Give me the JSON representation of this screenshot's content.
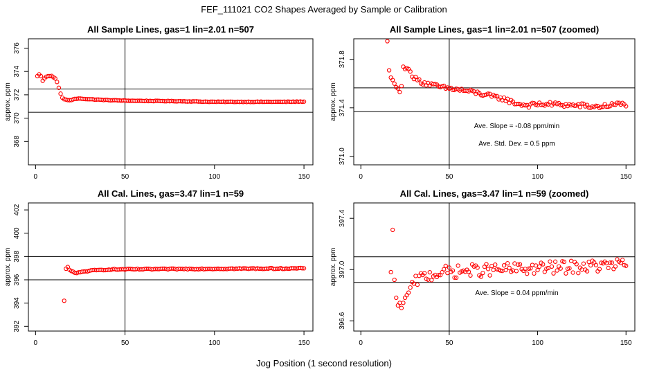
{
  "suptitle": "FEF_111021  CO2 Shapes Averaged by Sample or Calibration",
  "xlabel": "Jog Position (1 second resolution)",
  "colors": {
    "points": "#ff0000",
    "axes": "#000000",
    "background": "#ffffff"
  },
  "chart_data": [
    {
      "type": "scatter",
      "panel": "top-left",
      "title": "All Sample Lines, gas=1 lin=2.01 n=507",
      "ylabel": "approx. ppm",
      "xlim": [
        -4,
        155
      ],
      "ylim": [
        366.0,
        376.8
      ],
      "xticks": [
        "0",
        "50",
        "100",
        "150"
      ],
      "yticks": [
        "368",
        "370",
        "372",
        "374",
        "376"
      ],
      "vline": 50,
      "hlines": [
        372.5,
        370.5
      ],
      "annotations": [],
      "series": [
        {
          "name": "CO2 shape",
          "anchors": [
            [
              1,
              373.6
            ],
            [
              2,
              373.75
            ],
            [
              3,
              373.6
            ],
            [
              4,
              373.2
            ],
            [
              5,
              373.4
            ],
            [
              6,
              373.55
            ],
            [
              7,
              373.6
            ],
            [
              8,
              373.6
            ],
            [
              9,
              373.62
            ],
            [
              10,
              373.5
            ],
            [
              11,
              373.4
            ],
            [
              12,
              373.1
            ],
            [
              13,
              372.6
            ],
            [
              14,
              372.1
            ],
            [
              15,
              371.75
            ],
            [
              16,
              371.62
            ],
            [
              18,
              371.55
            ],
            [
              20,
              371.55
            ],
            [
              22,
              371.65
            ],
            [
              25,
              371.68
            ],
            [
              30,
              371.62
            ],
            [
              40,
              371.55
            ],
            [
              50,
              371.5
            ],
            [
              60,
              371.48
            ],
            [
              80,
              371.45
            ],
            [
              100,
              371.4
            ],
            [
              120,
              371.4
            ],
            [
              140,
              371.4
            ],
            [
              150,
              371.42
            ]
          ],
          "noise": 0.02
        }
      ]
    },
    {
      "type": "scatter",
      "panel": "top-right",
      "title": "All Sample Lines, gas=1 lin=2.01 n=507 (zoomed)",
      "ylabel": "approx. ppm",
      "xlim": [
        -4,
        155
      ],
      "ylim": [
        370.93,
        371.97
      ],
      "xticks": [
        "0",
        "50",
        "100",
        "150"
      ],
      "yticks": [
        "371.0",
        "371.4",
        "371.8"
      ],
      "vline": 50,
      "hlines": [
        371.565,
        371.37
      ],
      "annotations": [
        "Ave. Slope =  -0.08  ppm/min",
        "Ave. Std. Dev. =  0.5  ppm"
      ],
      "series": [
        {
          "name": "CO2 shape",
          "anchors": [
            [
              15,
              371.95
            ],
            [
              16,
              371.71
            ],
            [
              17,
              371.65
            ],
            [
              18,
              371.63
            ],
            [
              19,
              371.6
            ],
            [
              20,
              371.57
            ],
            [
              21,
              371.56
            ],
            [
              22,
              371.53
            ],
            [
              23,
              371.58
            ],
            [
              24,
              371.74
            ],
            [
              25,
              371.72
            ],
            [
              27,
              371.72
            ],
            [
              28,
              371.7
            ],
            [
              30,
              371.65
            ],
            [
              32,
              371.63
            ],
            [
              35,
              371.61
            ],
            [
              40,
              371.59
            ],
            [
              45,
              371.57
            ],
            [
              50,
              371.56
            ],
            [
              55,
              371.55
            ],
            [
              60,
              371.54
            ],
            [
              70,
              371.51
            ],
            [
              75,
              371.49
            ],
            [
              80,
              371.48
            ],
            [
              85,
              371.45
            ],
            [
              90,
              371.43
            ],
            [
              95,
              371.42
            ],
            [
              100,
              371.43
            ],
            [
              110,
              371.43
            ],
            [
              120,
              371.42
            ],
            [
              125,
              371.42
            ],
            [
              130,
              371.41
            ],
            [
              135,
              371.41
            ],
            [
              140,
              371.42
            ],
            [
              145,
              371.43
            ],
            [
              150,
              371.43
            ]
          ],
          "noise": 0.018
        }
      ]
    },
    {
      "type": "scatter",
      "panel": "bottom-left",
      "title": "All Cal. Lines, gas=3.47 lin=1 n=59",
      "ylabel": "approx. ppm",
      "xlim": [
        -4,
        155
      ],
      "ylim": [
        391.6,
        402.6
      ],
      "xticks": [
        "0",
        "50",
        "100",
        "150"
      ],
      "yticks": [
        "392",
        "394",
        "396",
        "398",
        "400",
        "402"
      ],
      "vline": 50,
      "hlines": [
        398.0,
        396.0
      ],
      "annotations": [],
      "series": [
        {
          "name": "CO2 shape",
          "anchors": [
            [
              16,
              394.2
            ],
            [
              17,
              396.95
            ],
            [
              18,
              397.1
            ],
            [
              19,
              396.85
            ],
            [
              20,
              396.75
            ],
            [
              21,
              396.7
            ],
            [
              22,
              396.6
            ],
            [
              23,
              396.58
            ],
            [
              25,
              396.65
            ],
            [
              30,
              396.78
            ],
            [
              40,
              396.88
            ],
            [
              50,
              396.9
            ],
            [
              100,
              396.95
            ],
            [
              150,
              396.98
            ]
          ],
          "noise": 0.04
        }
      ]
    },
    {
      "type": "scatter",
      "panel": "bottom-right",
      "title": "All Cal. Lines, gas=3.47 lin=1 n=59 (zoomed)",
      "ylabel": "approx. ppm",
      "xlim": [
        -4,
        155
      ],
      "ylim": [
        396.52,
        397.52
      ],
      "xticks": [
        "0",
        "50",
        "100",
        "150"
      ],
      "yticks": [
        "396.6",
        "397.0",
        "397.4"
      ],
      "vline": 50,
      "hlines": [
        397.1,
        396.9
      ],
      "annotations": [
        "Ave. Slope =  0.04  ppm/min"
      ],
      "series": [
        {
          "name": "CO2 shape",
          "anchors": [
            [
              17,
              396.98
            ],
            [
              18,
              397.31
            ],
            [
              19,
              396.92
            ],
            [
              20,
              396.78
            ],
            [
              21,
              396.72
            ],
            [
              22,
              396.74
            ],
            [
              23,
              396.7
            ],
            [
              24,
              396.74
            ],
            [
              25,
              396.78
            ],
            [
              26,
              396.8
            ],
            [
              27,
              396.82
            ],
            [
              28,
              396.86
            ],
            [
              30,
              396.88
            ],
            [
              32,
              396.92
            ],
            [
              35,
              396.94
            ],
            [
              40,
              396.96
            ],
            [
              45,
              396.98
            ],
            [
              50,
              396.98
            ],
            [
              60,
              396.99
            ],
            [
              80,
              397.0
            ],
            [
              100,
              397.01
            ],
            [
              120,
              397.02
            ],
            [
              140,
              397.03
            ],
            [
              150,
              397.04
            ]
          ],
          "noise": 0.05
        }
      ]
    }
  ]
}
